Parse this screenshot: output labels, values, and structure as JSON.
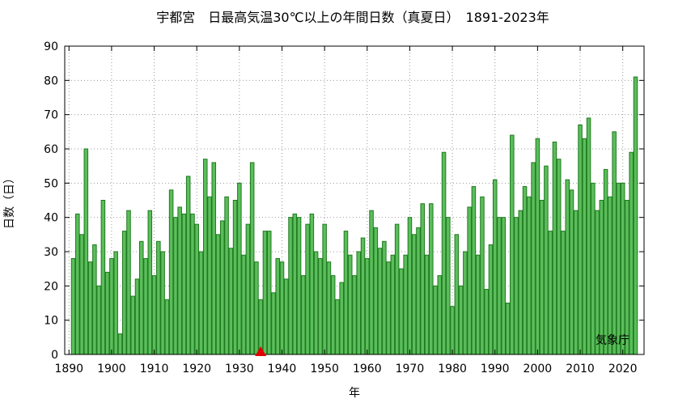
{
  "chart_data": {
    "type": "bar",
    "title": "宇都宮　日最高気温30℃以上の年間日数（真夏日）　1891-2023年",
    "xlabel": "年",
    "ylabel": "日数（日）",
    "credit": "気象庁",
    "ylim": [
      0,
      90
    ],
    "yticks": [
      0,
      10,
      20,
      30,
      40,
      50,
      60,
      70,
      80,
      90
    ],
    "xlim": [
      1889,
      2025
    ],
    "xticks": [
      1890,
      1900,
      1910,
      1920,
      1930,
      1940,
      1950,
      1960,
      1970,
      1980,
      1990,
      2000,
      2010,
      2020
    ],
    "grid": true,
    "bar_color": "#5bbd5b",
    "bar_edge_color": "#1e7a1e",
    "marker": {
      "x": 1935,
      "y": 0,
      "shape": "triangle",
      "color": "#e00000"
    },
    "x_start": 1891,
    "values": [
      28,
      41,
      35,
      60,
      27,
      32,
      20,
      45,
      24,
      28,
      30,
      6,
      36,
      42,
      17,
      22,
      33,
      28,
      42,
      23,
      33,
      30,
      16,
      48,
      40,
      43,
      41,
      52,
      41,
      38,
      30,
      57,
      46,
      56,
      35,
      39,
      46,
      31,
      45,
      50,
      29,
      38,
      56,
      27,
      16,
      36,
      36,
      18,
      28,
      27,
      22,
      40,
      41,
      40,
      23,
      38,
      41,
      30,
      28,
      38,
      27,
      23,
      16,
      21,
      36,
      29,
      23,
      30,
      34,
      28,
      42,
      37,
      31,
      33,
      27,
      29,
      38,
      25,
      29,
      40,
      35,
      37,
      44,
      29,
      44,
      20,
      23,
      59,
      40,
      14,
      35,
      20,
      30,
      43,
      49,
      29,
      46,
      19,
      32,
      51,
      40,
      40,
      15,
      64,
      40,
      42,
      49,
      46,
      56,
      63,
      45,
      55,
      36,
      62,
      57,
      36,
      51,
      48,
      42,
      67,
      63,
      69,
      50,
      42,
      45,
      54,
      46,
      65,
      50,
      50,
      45,
      59,
      81
    ]
  }
}
